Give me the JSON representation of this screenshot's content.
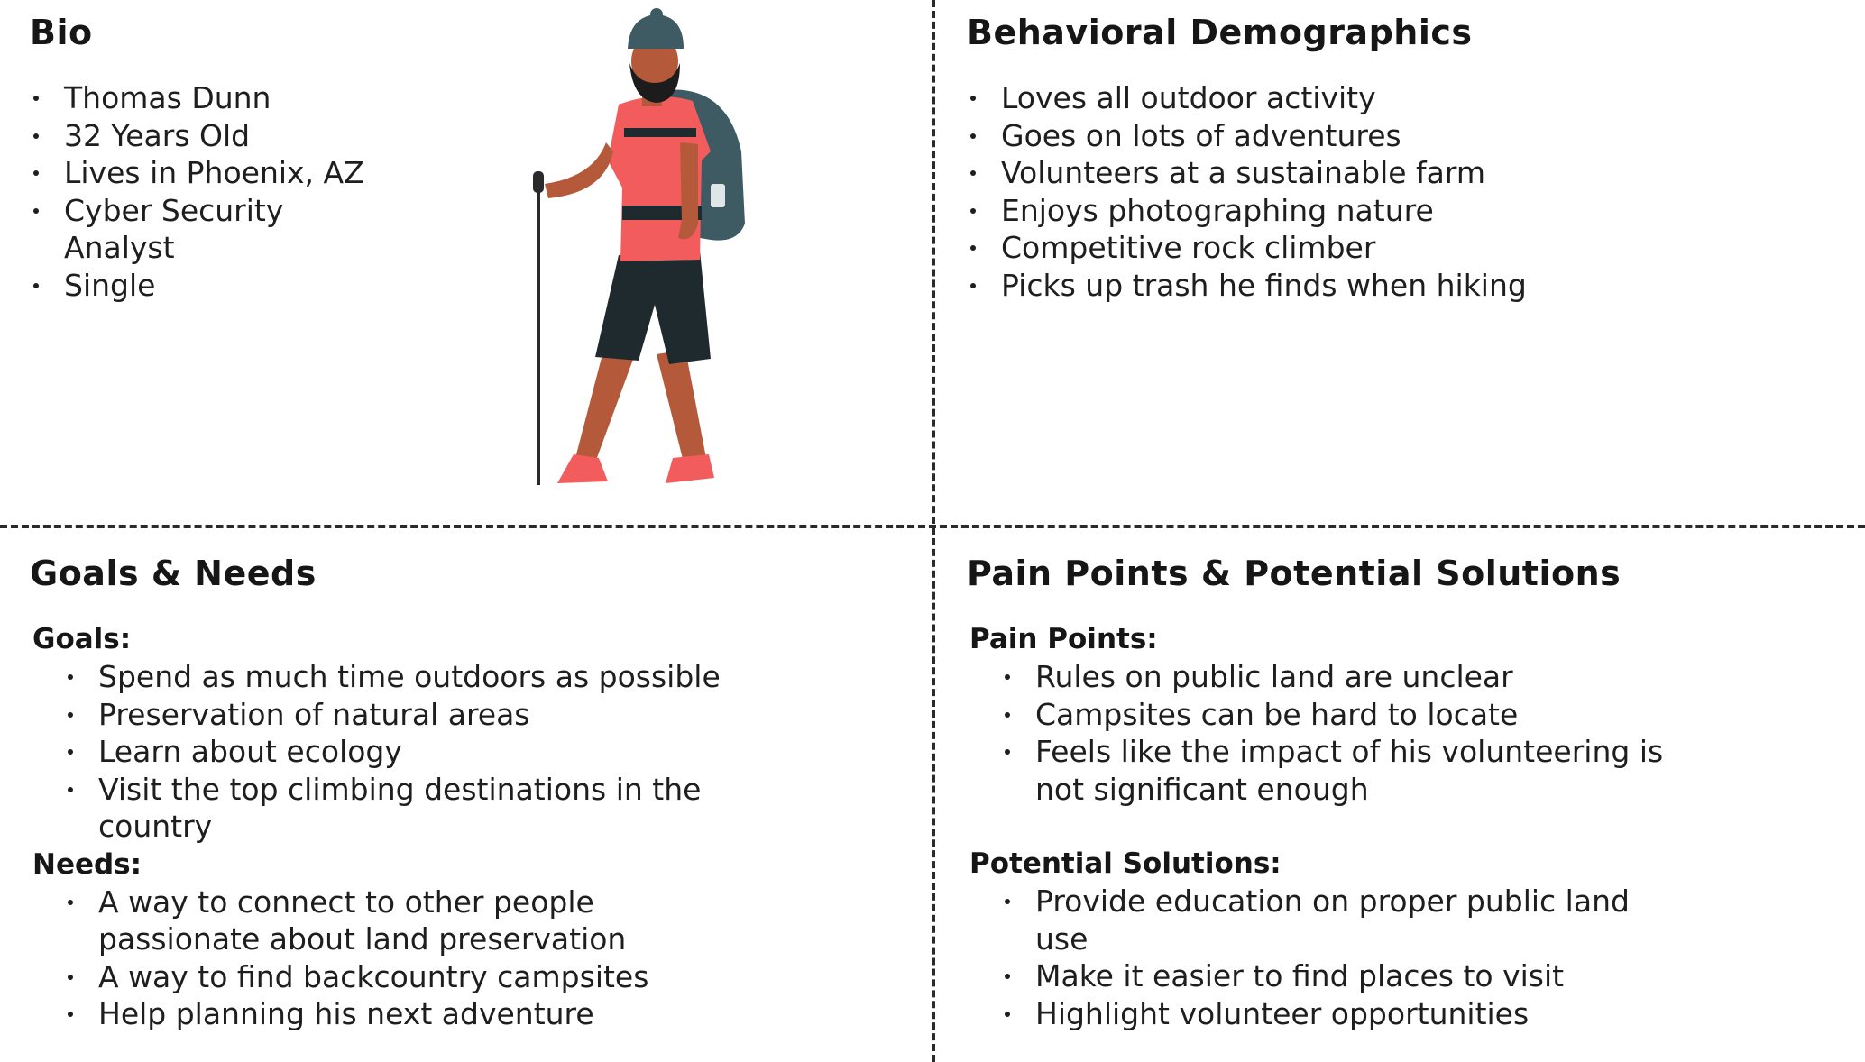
{
  "bio": {
    "title": "Bio",
    "items": [
      "Thomas Dunn",
      "32 Years Old",
      "Lives in Phoenix, AZ",
      "Cyber Security Analyst",
      "Single"
    ]
  },
  "behavioral": {
    "title": "Behavioral Demographics",
    "items": [
      "Loves all outdoor activity",
      "Goes on lots of adventures",
      "Volunteers at a sustainable farm",
      "Enjoys photographing nature",
      "Competitive rock climber",
      "Picks up trash he finds when hiking"
    ]
  },
  "goals_needs": {
    "title": "Goals & Needs",
    "goals_label": "Goals:",
    "goals": [
      "Spend as much time outdoors as possible",
      "Preservation of natural areas",
      "Learn about ecology",
      "Visit the top climbing destinations in the country"
    ],
    "needs_label": "Needs:",
    "needs": [
      "A way to connect to other people passionate about land preservation",
      "A way to find backcountry campsites",
      "Help planning his next adventure"
    ]
  },
  "pain_points": {
    "title": "Pain Points & Potential Solutions",
    "pain_label": "Pain Points:",
    "pain": [
      "Rules on public land are unclear",
      "Campsites can be hard to locate",
      "Feels like the impact of his volunteering is not significant enough"
    ],
    "solutions_label": "Potential Solutions:",
    "solutions": [
      "Provide education on proper public land use",
      "Make it easier to find places to visit",
      "Highlight volunteer opportunities"
    ]
  },
  "illustration": {
    "icon": "hiker-illustration",
    "colors": {
      "skin": "#b5593b",
      "shirt": "#f25c5c",
      "shorts": "#1f2a2e",
      "backpack": "#3e5a63",
      "beanie": "#3e5a63",
      "beard": "#1c1c1c",
      "shoes": "#f25c5c",
      "pole": "#2a2a2a"
    }
  }
}
